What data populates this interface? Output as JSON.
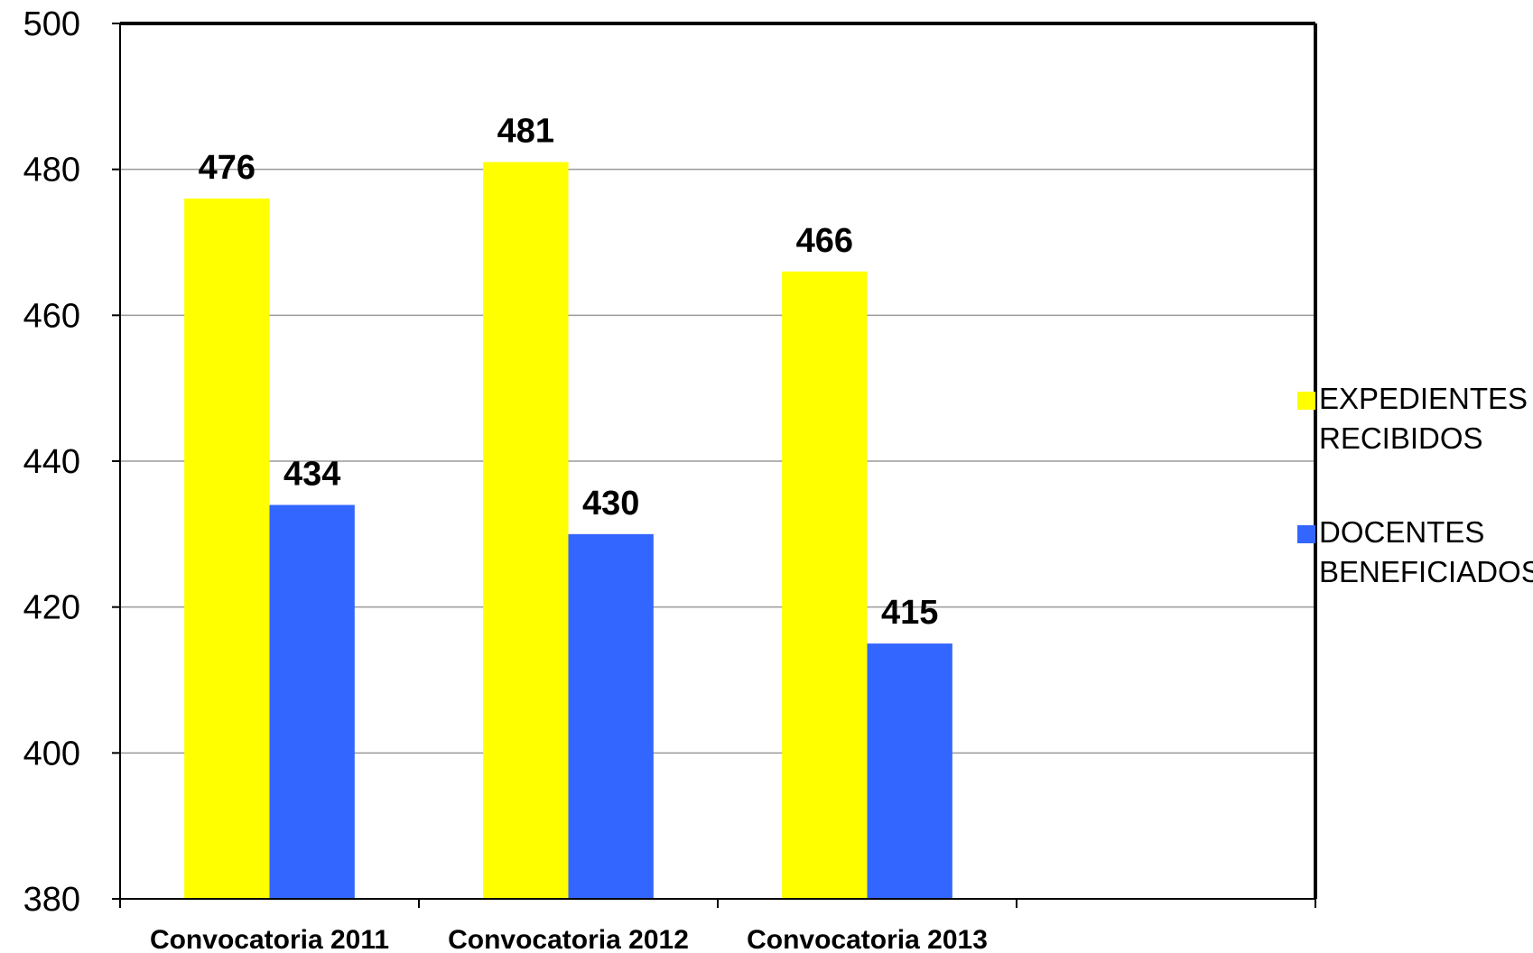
{
  "chart_data": {
    "type": "bar",
    "categories": [
      "Convocatoria 2011",
      "Convocatoria 2012",
      "Convocatoria 2013"
    ],
    "category_slots": 4,
    "series": [
      {
        "name": "EXPEDIENTES RECIBIDOS",
        "legend_lines": [
          "EXPEDIENTES",
          "RECIBIDOS"
        ],
        "color": "#ffff00",
        "values": [
          476,
          481,
          466
        ]
      },
      {
        "name": "DOCENTES BENEFICIADOS",
        "legend_lines": [
          "DOCENTES",
          "BENEFICIADOS"
        ],
        "color": "#3366ff",
        "values": [
          434,
          430,
          415
        ]
      }
    ],
    "title": "",
    "xlabel": "",
    "ylabel": "",
    "ylim": [
      380,
      500
    ],
    "yticks": [
      380,
      400,
      420,
      440,
      460,
      480,
      500
    ],
    "grid": true,
    "legend_position": "right",
    "data_labels": true
  }
}
